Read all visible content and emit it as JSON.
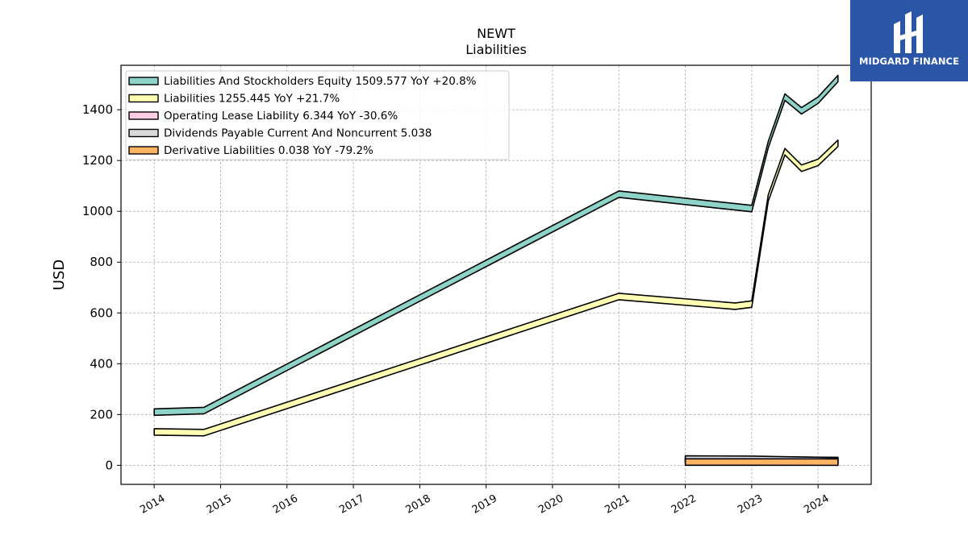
{
  "chart_data": {
    "type": "line",
    "title": "NEWT",
    "subtitle": "Liabilities",
    "ylabel": "USD",
    "xlabel": "",
    "ylim": [
      -75,
      1575
    ],
    "xlim": [
      2013.5,
      2024.8
    ],
    "yticks": [
      0,
      200,
      400,
      600,
      800,
      1000,
      1200,
      1400
    ],
    "xticks": [
      "2014",
      "2015",
      "2016",
      "2017",
      "2018",
      "2019",
      "2020",
      "2021",
      "2022",
      "2023",
      "2024"
    ],
    "grid": true,
    "legend_position": "upper-left",
    "series": [
      {
        "name": "Liabilities And Stockholders Equity  1509.577 YoY +20.8%",
        "color": "#8dd3c7",
        "points": [
          [
            2014.0,
            197
          ],
          [
            2014.75,
            203
          ],
          [
            2021.0,
            1055
          ],
          [
            2022.75,
            1005
          ],
          [
            2023.0,
            998
          ],
          [
            2023.25,
            1250
          ],
          [
            2023.5,
            1437
          ],
          [
            2023.75,
            1383
          ],
          [
            2024.0,
            1425
          ],
          [
            2024.3,
            1510
          ]
        ]
      },
      {
        "name": "Liabilities  1255.445 YoY +21.7%",
        "color": "#ffffb3",
        "points": [
          [
            2014.0,
            119
          ],
          [
            2014.75,
            116
          ],
          [
            2021.0,
            652
          ],
          [
            2022.75,
            614
          ],
          [
            2023.0,
            622
          ],
          [
            2023.25,
            1040
          ],
          [
            2023.5,
            1222
          ],
          [
            2023.75,
            1157
          ],
          [
            2024.0,
            1180
          ],
          [
            2024.3,
            1255
          ]
        ]
      },
      {
        "name": "Operating Lease Liability  6.344 YoY -30.6%",
        "color": "#fccde5",
        "points": [
          [
            2022.0,
            9.1
          ],
          [
            2023.0,
            8.5
          ],
          [
            2024.3,
            6.3
          ]
        ]
      },
      {
        "name": "Dividends Payable Current And Noncurrent  5.038",
        "color": "#d9d9d9",
        "points": [
          [
            2022.0,
            12
          ],
          [
            2023.0,
            11
          ],
          [
            2024.3,
            5.0
          ]
        ]
      },
      {
        "name": "Derivative Liabilities  0.038 YoY -79.2%",
        "color": "#fdb462",
        "points": [
          [
            2022.0,
            0.2
          ],
          [
            2023.0,
            0.1
          ],
          [
            2024.3,
            0.04
          ]
        ]
      }
    ]
  },
  "logo": {
    "text": "MIDGARD FINANCE"
  }
}
